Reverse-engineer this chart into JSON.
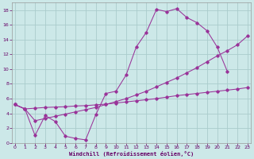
{
  "background_color": "#cce8e8",
  "grid_color": "#aacccc",
  "line_color": "#993399",
  "xlim": [
    -0.3,
    23.3
  ],
  "ylim": [
    0,
    19
  ],
  "xlabel": "Windchill (Refroidissement éolien,°C)",
  "xticks": [
    0,
    1,
    2,
    3,
    4,
    5,
    6,
    7,
    8,
    9,
    10,
    11,
    12,
    13,
    14,
    15,
    16,
    17,
    18,
    19,
    20,
    21,
    22,
    23
  ],
  "yticks": [
    0,
    2,
    4,
    6,
    8,
    10,
    12,
    14,
    16,
    18
  ],
  "curve1_x": [
    0,
    1,
    2,
    3,
    4,
    5,
    6,
    7,
    8,
    9,
    10,
    11,
    12,
    13,
    14,
    15,
    16,
    17,
    18,
    19,
    20,
    21
  ],
  "curve1_y": [
    5.2,
    4.6,
    1.0,
    3.7,
    2.9,
    0.9,
    0.6,
    0.4,
    3.8,
    6.7,
    7.0,
    9.2,
    13.0,
    15.0,
    18.1,
    17.8,
    18.2,
    17.0,
    16.3,
    15.2,
    13.0,
    9.7
  ],
  "curve2_x": [
    0,
    1,
    2,
    3,
    4,
    5,
    6,
    7,
    8,
    9,
    10,
    11,
    12,
    13,
    14,
    15,
    16,
    17,
    18,
    19,
    20,
    21,
    22,
    23
  ],
  "curve2_y": [
    5.2,
    4.6,
    3.0,
    3.3,
    3.6,
    3.9,
    4.2,
    4.5,
    4.8,
    5.2,
    5.6,
    6.0,
    6.5,
    7.0,
    7.6,
    8.2,
    8.8,
    9.5,
    10.2,
    11.0,
    11.8,
    12.5,
    13.3,
    14.5
  ],
  "curve3_x": [
    0,
    1,
    2,
    3,
    4,
    5,
    6,
    7,
    8,
    9,
    10,
    11,
    12,
    13,
    14,
    15,
    16,
    17,
    18,
    19,
    20,
    21,
    22,
    23
  ],
  "curve3_y": [
    5.2,
    4.6,
    4.7,
    4.8,
    4.85,
    4.9,
    5.0,
    5.05,
    5.15,
    5.25,
    5.4,
    5.55,
    5.7,
    5.85,
    6.0,
    6.2,
    6.4,
    6.55,
    6.7,
    6.85,
    7.0,
    7.15,
    7.3,
    7.5
  ]
}
